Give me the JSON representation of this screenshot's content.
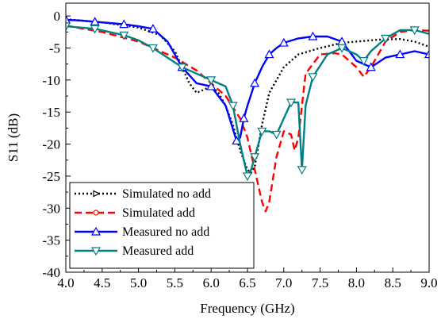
{
  "chart_data": {
    "type": "line",
    "title": "",
    "xlabel": "Frequency (GHz)",
    "ylabel": "S11 (dB)",
    "xlim": [
      4.0,
      9.0
    ],
    "ylim": [
      -40,
      2
    ],
    "xticks": [
      "4.0",
      "4.5",
      "5.0",
      "5.5",
      "6.0",
      "6.5",
      "7.0",
      "7.5",
      "8.0",
      "8.5",
      "9.0"
    ],
    "yticks": [
      "0",
      "-5",
      "-10",
      "-15",
      "-20",
      "-25",
      "-30",
      "-35",
      "-40"
    ],
    "grid": false,
    "legend_position": "bottom-left",
    "series": [
      {
        "name": "Simulated no add",
        "color": "#000000",
        "line_style": "dotted",
        "marker": "triangle-right",
        "x": [
          4.0,
          4.5,
          5.0,
          5.3,
          5.5,
          5.6,
          5.7,
          5.8,
          5.9,
          6.0,
          6.1,
          6.2,
          6.3,
          6.4,
          6.5,
          6.55,
          6.6,
          6.7,
          6.8,
          7.0,
          7.2,
          7.5,
          7.8,
          8.0,
          8.3,
          8.6,
          8.8,
          9.0
        ],
        "y": [
          -0.5,
          -1.0,
          -1.8,
          -3.0,
          -5.5,
          -8.0,
          -10.5,
          -12.0,
          -11.5,
          -11.0,
          -12.0,
          -14.0,
          -17.0,
          -21.0,
          -24.0,
          -24.5,
          -23.5,
          -17.0,
          -12.0,
          -8.0,
          -6.0,
          -5.0,
          -4.2,
          -4.0,
          -3.7,
          -3.6,
          -4.0,
          -4.8
        ]
      },
      {
        "name": "Simulated add",
        "color": "#ff0000",
        "line_style": "dashed",
        "marker": "circle",
        "x": [
          4.0,
          4.5,
          5.0,
          5.5,
          5.8,
          6.0,
          6.2,
          6.4,
          6.5,
          6.6,
          6.7,
          6.75,
          6.8,
          6.9,
          7.0,
          7.1,
          7.15,
          7.2,
          7.3,
          7.5,
          7.7,
          7.8,
          8.0,
          8.1,
          8.2,
          8.4,
          8.6,
          8.8,
          9.0
        ],
        "y": [
          -1.5,
          -2.5,
          -4.0,
          -6.5,
          -8.5,
          -10.5,
          -12.5,
          -16.0,
          -19.0,
          -24.0,
          -29.0,
          -30.5,
          -29.0,
          -22.0,
          -18.0,
          -18.5,
          -21.0,
          -19.0,
          -9.0,
          -6.0,
          -5.8,
          -6.0,
          -8.0,
          -9.5,
          -8.0,
          -4.0,
          -2.5,
          -2.2,
          -2.3
        ]
      },
      {
        "name": "Measured no add",
        "color": "#0000ff",
        "line_style": "solid",
        "marker": "triangle-up",
        "x": [
          4.0,
          4.2,
          4.4,
          4.6,
          4.8,
          5.0,
          5.2,
          5.4,
          5.6,
          5.8,
          6.0,
          6.2,
          6.35,
          6.4,
          6.45,
          6.5,
          6.6,
          6.7,
          6.8,
          6.9,
          7.0,
          7.2,
          7.4,
          7.6,
          7.8,
          8.0,
          8.2,
          8.4,
          8.6,
          8.8,
          9.0
        ],
        "y": [
          -0.6,
          -0.7,
          -0.9,
          -1.1,
          -1.3,
          -1.6,
          -2.0,
          -4.0,
          -8.0,
          -10.5,
          -11.0,
          -14.0,
          -19.5,
          -19.0,
          -16.0,
          -14.0,
          -10.5,
          -8.0,
          -6.0,
          -5.0,
          -4.2,
          -3.5,
          -3.2,
          -3.2,
          -4.0,
          -7.0,
          -8.0,
          -6.5,
          -6.0,
          -5.5,
          -6.0
        ]
      },
      {
        "name": "Measured add",
        "color": "#008080",
        "line_style": "solid",
        "marker": "triangle-down",
        "x": [
          4.0,
          4.2,
          4.4,
          4.6,
          4.8,
          5.0,
          5.2,
          5.4,
          5.6,
          5.8,
          6.0,
          6.2,
          6.3,
          6.4,
          6.5,
          6.55,
          6.6,
          6.65,
          6.7,
          6.8,
          6.9,
          7.0,
          7.1,
          7.2,
          7.25,
          7.3,
          7.4,
          7.6,
          7.8,
          8.0,
          8.1,
          8.2,
          8.4,
          8.6,
          8.8,
          9.0
        ],
        "y": [
          -1.6,
          -1.8,
          -2.0,
          -2.5,
          -3.0,
          -3.8,
          -5.0,
          -6.5,
          -8.0,
          -9.0,
          -10.0,
          -11.0,
          -14.0,
          -20.0,
          -25.0,
          -24.0,
          -22.0,
          -20.0,
          -18.0,
          -18.0,
          -18.5,
          -16.0,
          -13.5,
          -13.5,
          -24.0,
          -14.0,
          -9.5,
          -6.0,
          -5.0,
          -6.0,
          -7.0,
          -5.5,
          -3.5,
          -2.2,
          -2.2,
          -2.8
        ]
      }
    ]
  }
}
